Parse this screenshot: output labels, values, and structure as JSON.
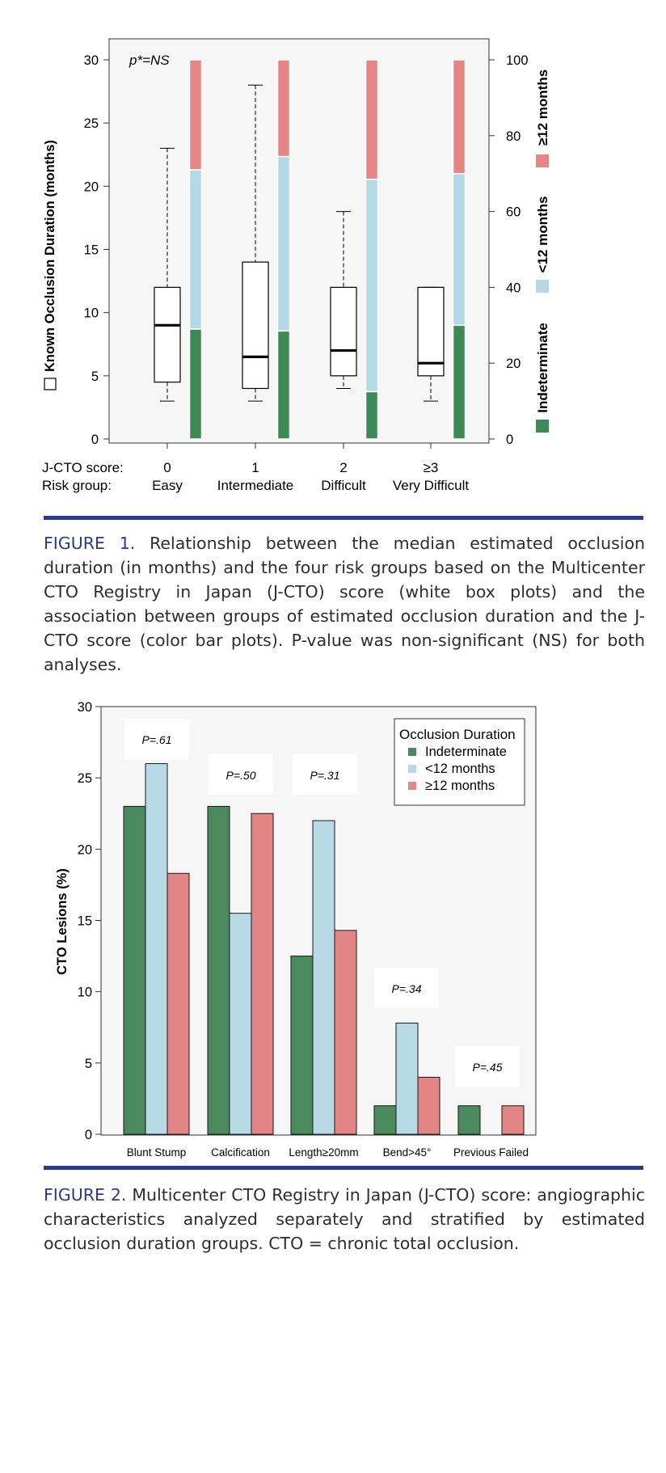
{
  "figure1": {
    "chart_data": {
      "type": "box+stacked-bar",
      "annotation": "p*=NS",
      "ylabel_left": "Known Occlusion Duration (months)",
      "ylim_left": [
        0,
        30
      ],
      "yticks_left": [
        0,
        5,
        10,
        15,
        20,
        25,
        30
      ],
      "ylim_right": [
        0,
        100
      ],
      "yticks_right": [
        0,
        20,
        40,
        60,
        80,
        100
      ],
      "row_labels": [
        "J-CTO score:",
        "Risk group:"
      ],
      "categories": [
        {
          "score": "0",
          "group": "Easy"
        },
        {
          "score": "1",
          "group": "Intermediate"
        },
        {
          "score": "2",
          "group": "Difficult"
        },
        {
          "score": "≥3",
          "group": "Very Difficult"
        }
      ],
      "boxes": [
        {
          "whisker_low": 3,
          "q1": 4.5,
          "median": 9,
          "q3": 12,
          "whisker_high": 23
        },
        {
          "whisker_low": 3,
          "q1": 4,
          "median": 6.5,
          "q3": 14,
          "whisker_high": 28
        },
        {
          "whisker_low": 4,
          "q1": 5,
          "median": 7,
          "q3": 12,
          "whisker_high": 18
        },
        {
          "whisker_low": 3,
          "q1": 5,
          "median": 6,
          "q3": 12,
          "whisker_high": 12
        }
      ],
      "stacked_series": [
        {
          "name": "Indeterminate",
          "color": "#3e8a57",
          "values": [
            29,
            28.5,
            12.5,
            30
          ]
        },
        {
          "name": "<12 months",
          "color": "#b5d8e6",
          "values": [
            42,
            46,
            56,
            40
          ]
        },
        {
          "name": "≥12 months",
          "color": "#e58585",
          "values": [
            29,
            25.5,
            31.5,
            30
          ]
        }
      ],
      "legend_right": [
        "Indeterminate",
        "<12 months",
        "≥12 months"
      ]
    }
  },
  "caption1": {
    "lead": "FIGURE 1.",
    "text": " Relationship between the median estimated occlusion duration (in months) and the four risk groups based on the Multicenter CTO Registry in Japan (J-CTO) score (white box plots) and the association between groups of estimated occlusion duration and the J-CTO score (color bar plots). P-value was non-significant (NS) for both analyses."
  },
  "figure2": {
    "chart_data": {
      "type": "bar",
      "ylabel": "CTO Lesions (%)",
      "ylim": [
        0,
        30
      ],
      "yticks": [
        0,
        5,
        10,
        15,
        20,
        25,
        30
      ],
      "categories": [
        "Blunt Stump",
        "Calcification",
        "Length≥20mm",
        "Bend>45°",
        "Previous Failed"
      ],
      "series": [
        {
          "name": "Indeterminate",
          "color": "#4a8a5c",
          "values": [
            23,
            23,
            12.5,
            2,
            2
          ]
        },
        {
          "name": "<12 months",
          "color": "#b8d9e6",
          "values": [
            26,
            15.5,
            22,
            7.8,
            0
          ]
        },
        {
          "name": "≥12 months",
          "color": "#e38585",
          "values": [
            18.3,
            22.5,
            14.3,
            4,
            2
          ]
        }
      ],
      "pvalues": [
        "P=.61",
        "P=.50",
        "P=.31",
        "P=.34",
        "P=.45"
      ],
      "legend_title": "Occlusion Duration",
      "legend_placement": "top-right"
    }
  },
  "caption2": {
    "lead": "FIGURE 2.",
    "text": " Multicenter CTO Registry in Japan (J-CTO) score: angiographic characteristics analyzed separately and stratified by estimated occlusion duration groups. CTO = chronic total occlusion."
  }
}
